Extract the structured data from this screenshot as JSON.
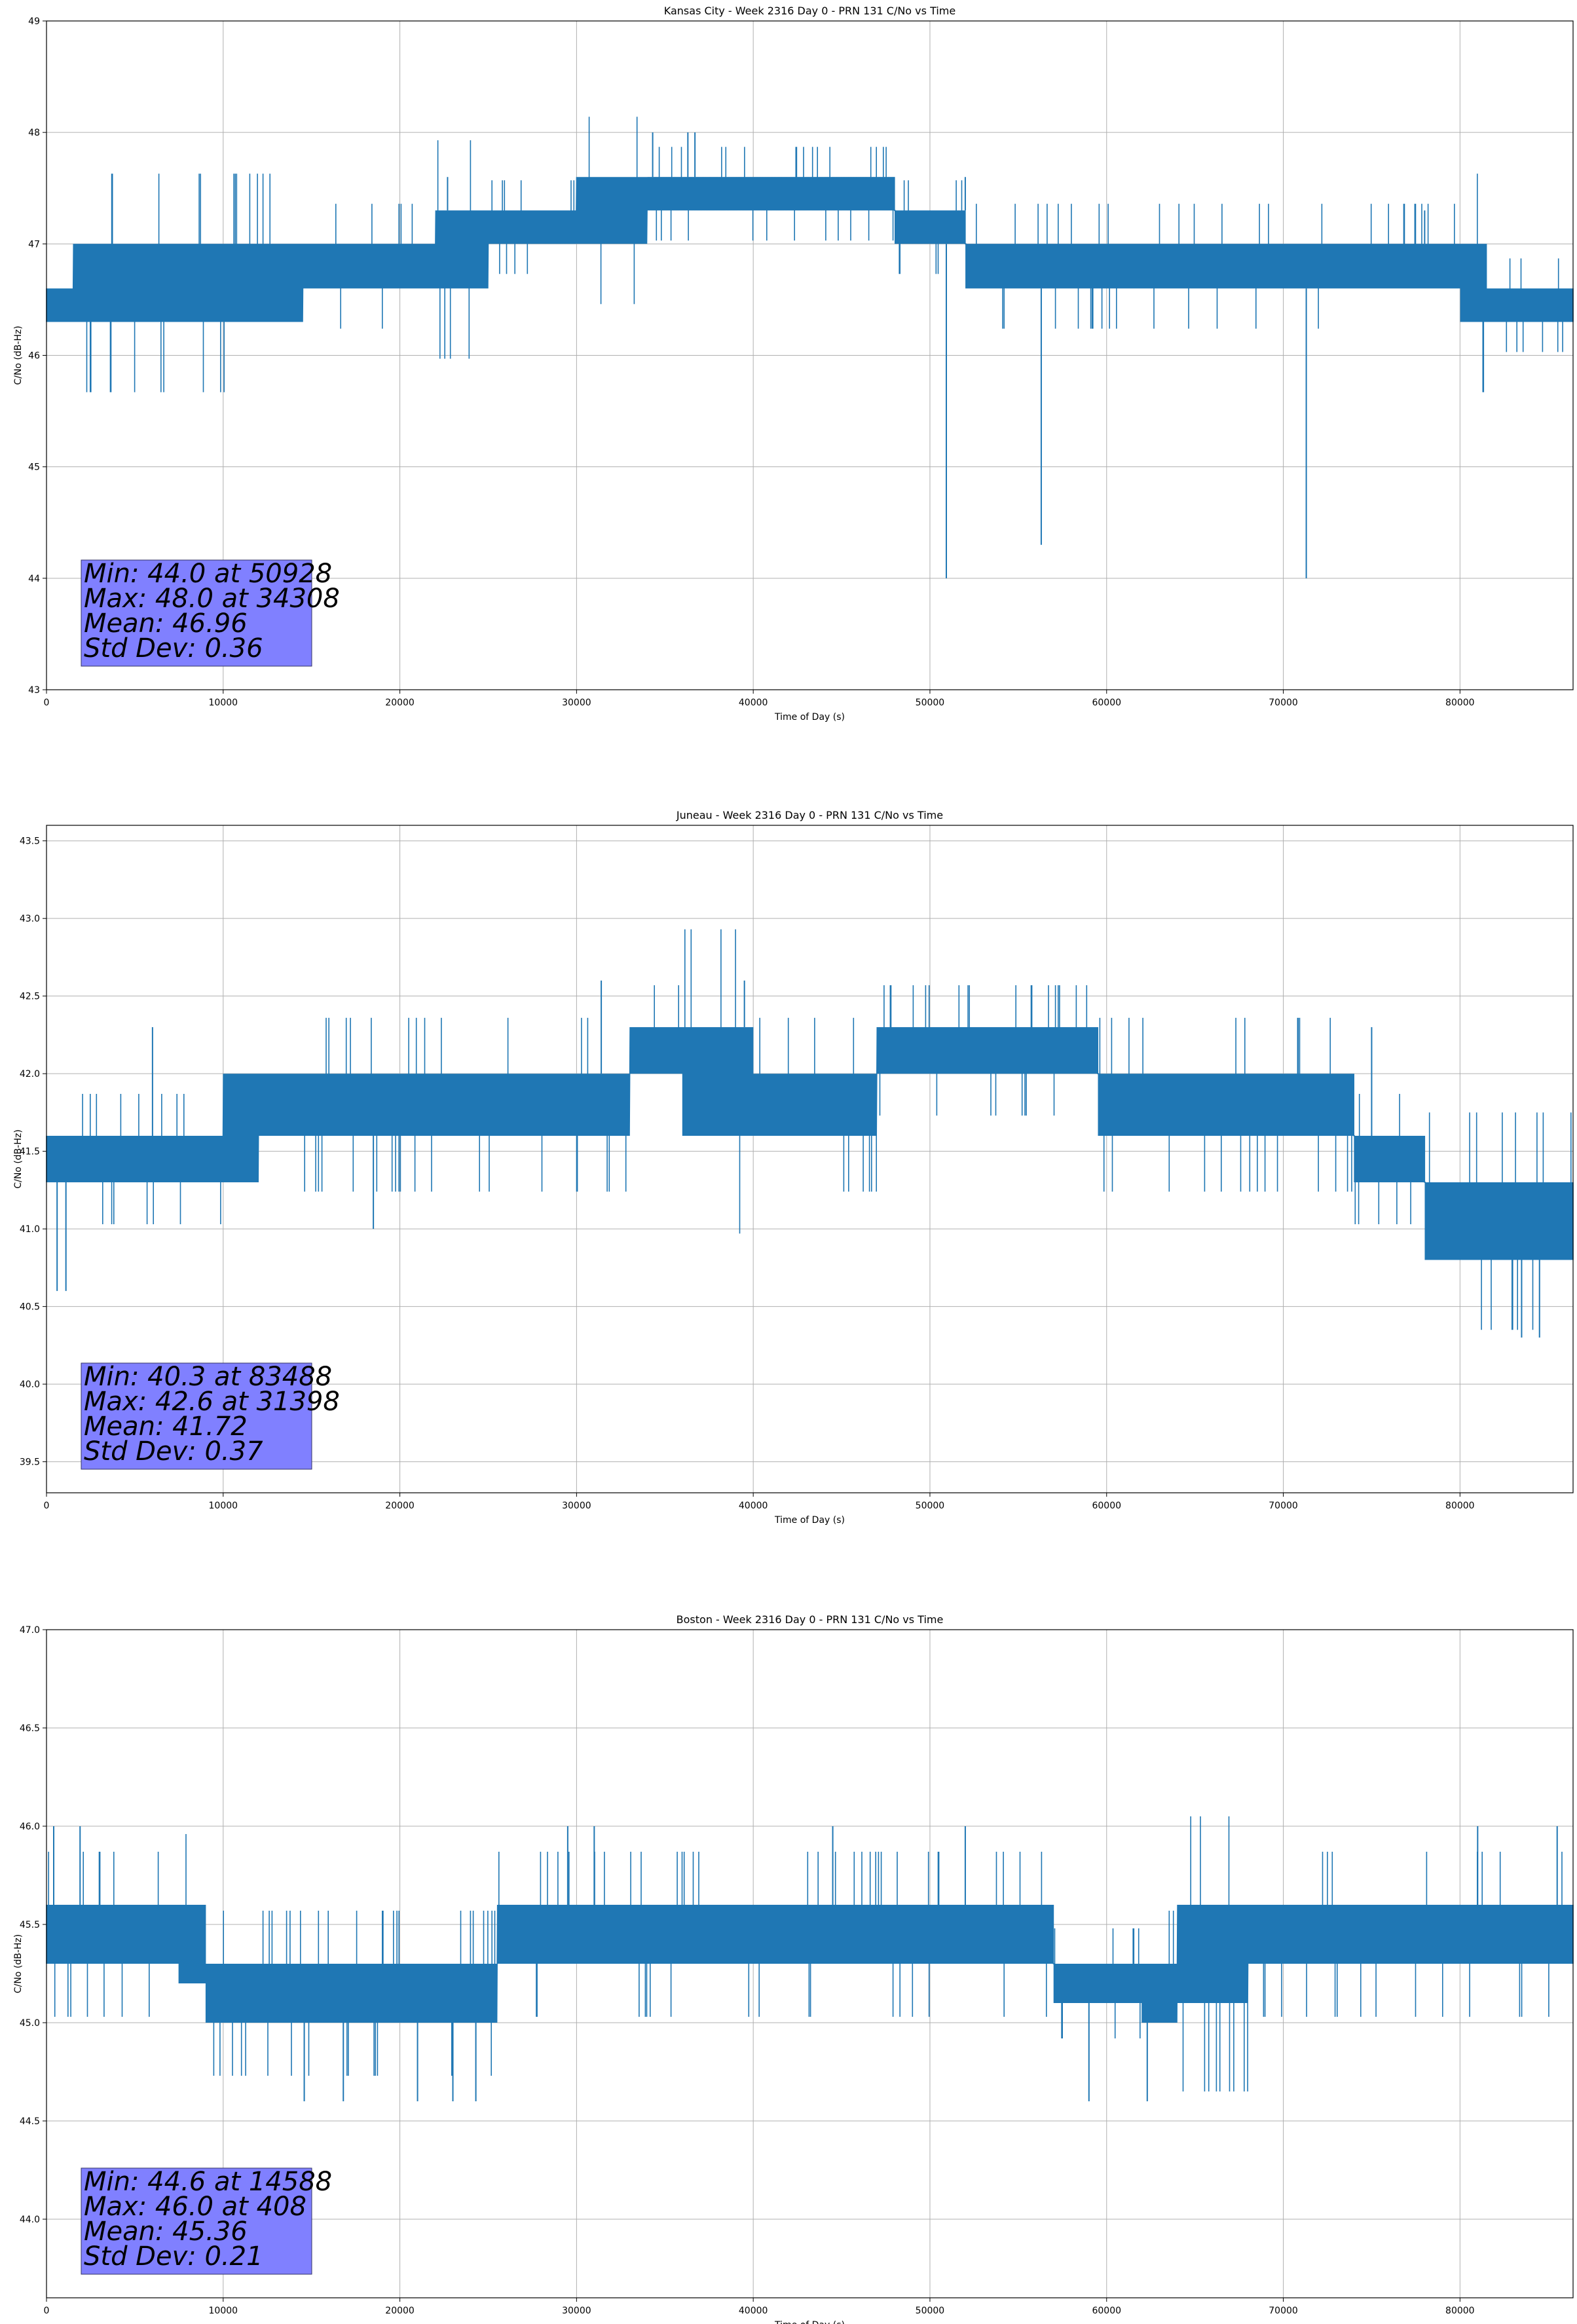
{
  "chart_data": [
    {
      "type": "line",
      "title": "Kansas City - Week 2316 Day 0 - PRN 131 C/No vs Time",
      "xlabel": "Time of Day (s)",
      "ylabel": "C/No (dB-Hz)",
      "xlim": [
        0,
        86400
      ],
      "ylim": [
        43,
        49
      ],
      "xticks": [
        "0",
        "10000",
        "20000",
        "30000",
        "40000",
        "50000",
        "60000",
        "70000",
        "80000"
      ],
      "yticks": [
        "43",
        "44",
        "45",
        "46",
        "47",
        "48",
        "49"
      ],
      "grid": true,
      "line_color": "#1f77b4",
      "band": {
        "x": [
          0,
          1500,
          4000,
          8000,
          12000,
          14500,
          18000,
          22000,
          25000,
          30000,
          34000,
          38000,
          42000,
          46000,
          48000,
          50500,
          52000,
          54000,
          58000,
          62000,
          66000,
          70000,
          74000,
          78000,
          80000,
          81500,
          84000,
          86400
        ],
        "low": [
          46.3,
          46.3,
          46.3,
          46.3,
          46.3,
          46.6,
          46.6,
          46.6,
          47.0,
          47.0,
          47.3,
          47.3,
          47.3,
          47.3,
          47.0,
          47.0,
          46.6,
          46.6,
          46.6,
          46.6,
          46.6,
          46.6,
          46.6,
          46.6,
          46.3,
          46.3,
          46.3,
          46.3
        ],
        "high": [
          46.6,
          47.0,
          47.0,
          47.0,
          47.0,
          47.0,
          47.0,
          47.3,
          47.3,
          47.6,
          47.6,
          47.6,
          47.6,
          47.6,
          47.3,
          47.3,
          47.0,
          47.0,
          47.0,
          47.0,
          47.0,
          47.0,
          47.0,
          47.0,
          47.0,
          46.6,
          46.6,
          46.6
        ]
      },
      "spikes": [
        {
          "x": 34308,
          "y": 48.0
        },
        {
          "x": 36300,
          "y": 48.0
        },
        {
          "x": 36700,
          "y": 48.0
        },
        {
          "x": 50928,
          "y": 44.0
        },
        {
          "x": 56300,
          "y": 44.3
        },
        {
          "x": 71300,
          "y": 44.0
        },
        {
          "x": 22700,
          "y": 47.6
        },
        {
          "x": 52000,
          "y": 47.6
        },
        {
          "x": 78000,
          "y": 47.3
        }
      ],
      "stats": {
        "min": "Min: 44.0 at 50928",
        "max": "Max: 48.0 at 34308",
        "mean": "Mean: 46.96",
        "std": "Std Dev: 0.36"
      }
    },
    {
      "type": "line",
      "title": "Juneau - Week 2316 Day 0 - PRN 131 C/No vs Time",
      "xlabel": "Time of Day (s)",
      "ylabel": "C/No (dB-Hz)",
      "xlim": [
        0,
        86400
      ],
      "ylim": [
        39.3,
        43.6
      ],
      "xticks": [
        "0",
        "10000",
        "20000",
        "30000",
        "40000",
        "50000",
        "60000",
        "70000",
        "80000"
      ],
      "yticks": [
        "39.5",
        "40.0",
        "40.5",
        "41.0",
        "41.5",
        "42.0",
        "42.5",
        "43.0",
        "43.5"
      ],
      "grid": true,
      "line_color": "#1f77b4",
      "band": {
        "x": [
          0,
          3000,
          6000,
          9000,
          10000,
          12000,
          15000,
          20000,
          25000,
          30000,
          33000,
          36000,
          40000,
          44000,
          47000,
          50000,
          55000,
          59500,
          62000,
          66000,
          70000,
          74000,
          77000,
          78000,
          81000,
          84000,
          86400
        ],
        "low": [
          41.3,
          41.3,
          41.3,
          41.3,
          41.3,
          41.6,
          41.6,
          41.6,
          41.6,
          41.6,
          42.0,
          41.6,
          41.6,
          41.6,
          42.0,
          42.0,
          42.0,
          41.6,
          41.6,
          41.6,
          41.6,
          41.3,
          41.3,
          40.8,
          40.8,
          40.8,
          41.0
        ],
        "high": [
          41.6,
          41.6,
          41.6,
          41.6,
          42.0,
          42.0,
          42.0,
          42.0,
          42.0,
          42.0,
          42.3,
          42.3,
          42.0,
          42.0,
          42.3,
          42.3,
          42.3,
          42.0,
          42.0,
          42.0,
          42.0,
          41.6,
          41.6,
          41.3,
          41.3,
          41.3,
          41.3
        ]
      },
      "spikes": [
        {
          "x": 31398,
          "y": 42.6
        },
        {
          "x": 39500,
          "y": 42.6
        },
        {
          "x": 83488,
          "y": 40.3
        },
        {
          "x": 84500,
          "y": 40.3
        },
        {
          "x": 600,
          "y": 40.6
        },
        {
          "x": 1100,
          "y": 40.6
        },
        {
          "x": 18500,
          "y": 41.0
        },
        {
          "x": 6000,
          "y": 42.3
        },
        {
          "x": 75000,
          "y": 42.3
        }
      ],
      "stats": {
        "min": "Min: 40.3 at 83488",
        "max": "Max: 42.6 at 31398",
        "mean": "Mean: 41.72",
        "std": "Std Dev: 0.37"
      }
    },
    {
      "type": "line",
      "title": "Boston - Week 2316 Day 0 - PRN 131 C/No vs Time",
      "xlabel": "Time of Day (s)",
      "ylabel": "C/No (dB-Hz)",
      "xlim": [
        0,
        86400
      ],
      "ylim": [
        43.6,
        47.0
      ],
      "xticks": [
        "0",
        "10000",
        "20000",
        "30000",
        "40000",
        "50000",
        "60000",
        "70000",
        "80000"
      ],
      "yticks": [
        "44.0",
        "44.5",
        "45.0",
        "45.5",
        "46.0",
        "46.5",
        "47.0"
      ],
      "grid": true,
      "line_color": "#1f77b4",
      "band": {
        "x": [
          0,
          4000,
          7500,
          9000,
          12000,
          15000,
          20000,
          24000,
          25500,
          30000,
          35000,
          40000,
          44000,
          45000,
          50000,
          55000,
          57000,
          62000,
          64000,
          68000,
          72000,
          76000,
          80000,
          84000,
          86400
        ],
        "low": [
          45.3,
          45.3,
          45.2,
          45.0,
          45.0,
          45.0,
          45.0,
          45.0,
          45.3,
          45.3,
          45.3,
          45.3,
          45.3,
          45.3,
          45.3,
          45.3,
          45.1,
          45.0,
          45.1,
          45.3,
          45.3,
          45.3,
          45.3,
          45.3,
          45.3
        ],
        "high": [
          45.6,
          45.6,
          45.6,
          45.3,
          45.3,
          45.3,
          45.3,
          45.3,
          45.6,
          45.6,
          45.6,
          45.6,
          45.6,
          45.6,
          45.6,
          45.6,
          45.3,
          45.3,
          45.6,
          45.6,
          45.6,
          45.6,
          45.6,
          45.6,
          45.6
        ]
      },
      "spikes": [
        {
          "x": 408,
          "y": 46.0
        },
        {
          "x": 1900,
          "y": 46.0
        },
        {
          "x": 14588,
          "y": 44.6
        },
        {
          "x": 16800,
          "y": 44.6
        },
        {
          "x": 21000,
          "y": 44.6
        },
        {
          "x": 23000,
          "y": 44.6
        },
        {
          "x": 24300,
          "y": 44.6
        },
        {
          "x": 59000,
          "y": 44.6
        },
        {
          "x": 62300,
          "y": 44.6
        },
        {
          "x": 29500,
          "y": 46.0
        },
        {
          "x": 31000,
          "y": 46.0
        },
        {
          "x": 44500,
          "y": 46.0
        },
        {
          "x": 52000,
          "y": 46.0
        },
        {
          "x": 81000,
          "y": 46.0
        },
        {
          "x": 85500,
          "y": 46.0
        }
      ],
      "stats": {
        "min": "Min: 44.6 at 14588",
        "max": "Max: 46.0 at 408",
        "mean": "Mean: 45.36",
        "std": "Std Dev: 0.21"
      }
    }
  ]
}
